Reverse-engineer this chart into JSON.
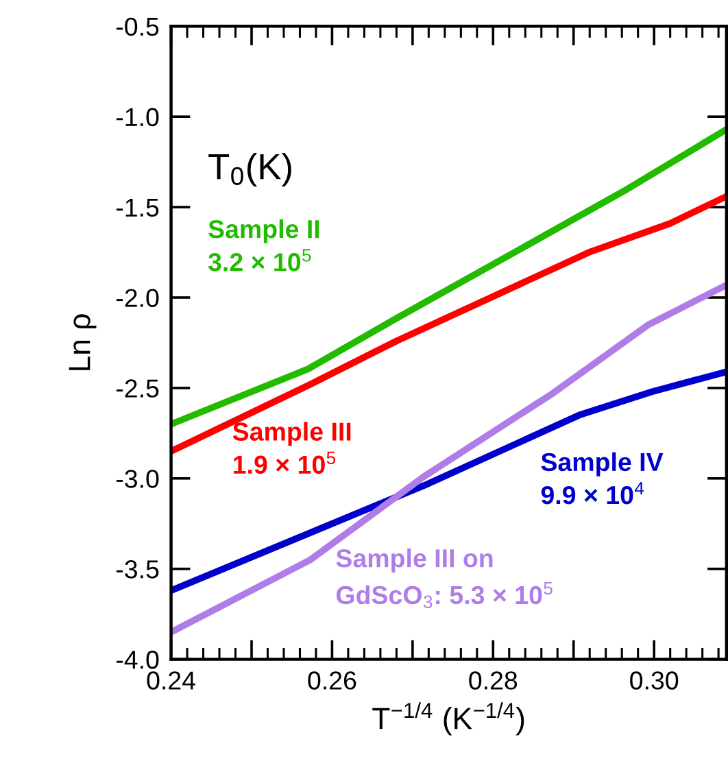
{
  "chart_data": {
    "type": "line",
    "ylabel": "Ln ρ",
    "xlabel": "T$^{−1/4}$ (K$^{−1/4}$)",
    "annotations": [
      "T$_{0}$(K)"
    ],
    "xlim": [
      0.24,
      0.309
    ],
    "ylim": [
      -4.0,
      -0.5
    ],
    "xticks": [
      0.24,
      {
        "value": 0.25,
        "label": null
      },
      0.26,
      {
        "value": 0.27,
        "label": null
      },
      0.28,
      {
        "value": 0.29,
        "label": null
      },
      {
        "value": 0.3,
        "label": "0.30"
      }
    ],
    "yticks": [
      {
        "value": -4.0,
        "label": "-4.0"
      },
      -3.5,
      {
        "value": -3.0,
        "label": "-3.0"
      },
      -2.5,
      {
        "value": -2.0,
        "label": "-2.0"
      },
      -1.5,
      {
        "value": -1.0,
        "label": "-1.0"
      },
      -0.5
    ],
    "grid": false,
    "legend": false,
    "marker": "none",
    "line_style": "solid",
    "series": [
      {
        "name": "Sample II\n3.2 × 10$^{5}$",
        "color": "#22bb00",
        "x": [
          0.24,
          0.257,
          0.268,
          0.2963,
          0.309
        ],
        "values": [
          -2.7,
          -2.395,
          -2.115,
          -1.41,
          -1.07
        ]
      },
      {
        "name": "Sample III\n1.9 × 10$^{5}$",
        "color": "#ff0000",
        "x": [
          0.24,
          0.2573,
          0.268,
          0.2919,
          0.302,
          0.309
        ],
        "values": [
          -2.85,
          -2.48,
          -2.24,
          -1.75,
          -1.59,
          -1.44
        ]
      },
      {
        "name": "Sample IV\n9.9 × 10$^{4}$",
        "color": "#0000cc",
        "x": [
          0.24,
          0.2573,
          0.2714,
          0.2907,
          0.2998,
          0.309
        ],
        "values": [
          -3.62,
          -3.3,
          -3.04,
          -2.65,
          -2.52,
          -2.41
        ]
      },
      {
        "name": "Sample III on\nGdScO$_{3}$: 5.3 × 10$^{5}$",
        "color": "#b07de8",
        "x": [
          0.24,
          0.2573,
          0.2714,
          0.2874,
          0.2993,
          0.309
        ],
        "values": [
          -3.85,
          -3.45,
          -2.99,
          -2.53,
          -2.15,
          -1.93
        ]
      }
    ]
  }
}
